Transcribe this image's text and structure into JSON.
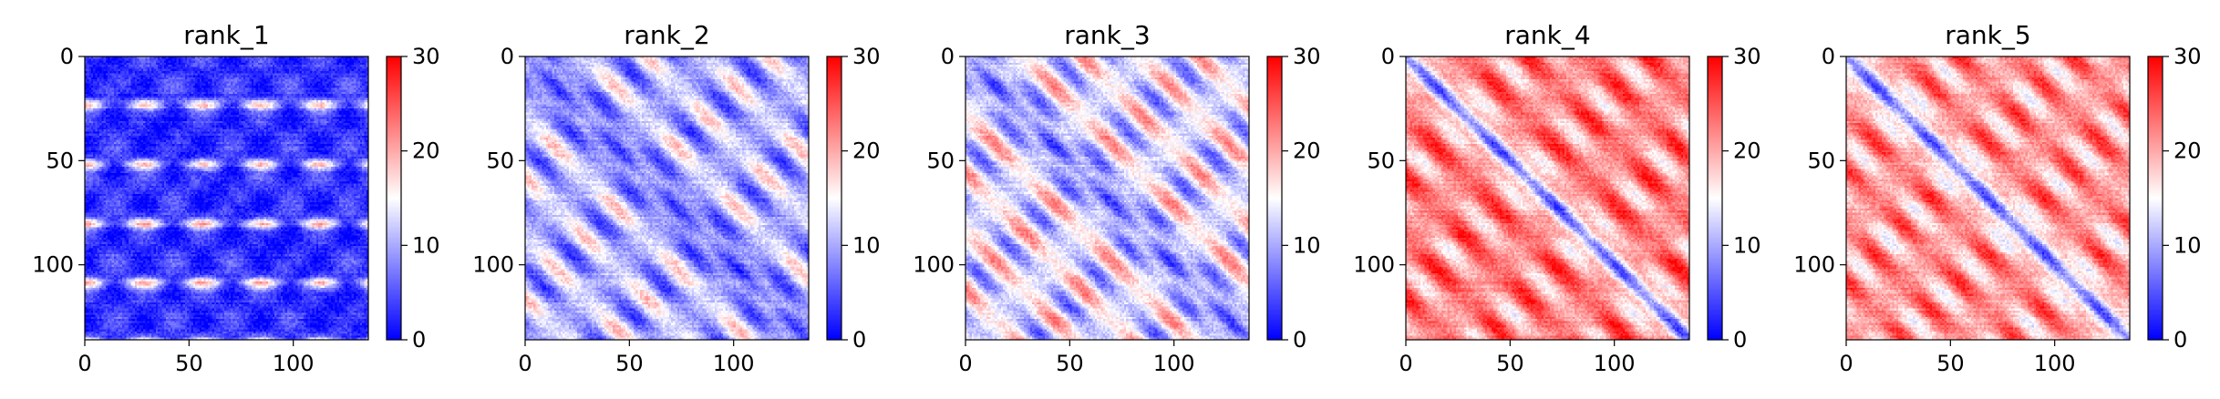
{
  "chart_data": [
    {
      "type": "heatmap",
      "title": "rank_1",
      "rows": 136,
      "cols": 136,
      "x_ticks": [
        0,
        50,
        100
      ],
      "y_ticks": [
        0,
        50,
        100
      ],
      "colorbar": {
        "min": 0,
        "max": 30,
        "ticks": [
          0,
          10,
          20,
          30
        ],
        "colormap": "bwr"
      },
      "pattern": {
        "base": 3,
        "diag_depth": 3,
        "diag_width": 3,
        "wave_amp": 3,
        "band_period": 28.5,
        "band_strength": 16,
        "check_period": 28,
        "off_period": 0,
        "noise": 4,
        "seed": 1
      }
    },
    {
      "type": "heatmap",
      "title": "rank_2",
      "rows": 136,
      "cols": 136,
      "x_ticks": [
        0,
        50,
        100
      ],
      "y_ticks": [
        0,
        50,
        100
      ],
      "colorbar": {
        "min": 0,
        "max": 30,
        "ticks": [
          0,
          10,
          20,
          30
        ],
        "colormap": "bwr"
      },
      "pattern": {
        "base": 11,
        "diag_depth": 10,
        "diag_width": 4,
        "wave_amp": 8,
        "band_period": 0,
        "band_strength": 0,
        "check_period": 0,
        "off_period": 29,
        "noise": 4,
        "seed": 2
      }
    },
    {
      "type": "heatmap",
      "title": "rank_3",
      "rows": 136,
      "cols": 136,
      "x_ticks": [
        0,
        50,
        100
      ],
      "y_ticks": [
        0,
        50,
        100
      ],
      "colorbar": {
        "min": 0,
        "max": 30,
        "ticks": [
          0,
          10,
          20,
          30
        ],
        "colormap": "bwr"
      },
      "pattern": {
        "base": 14,
        "diag_depth": 13,
        "diag_width": 4,
        "wave_amp": 9,
        "band_period": 0,
        "band_strength": 0,
        "check_period": 0,
        "off_period": 28,
        "noise": 4,
        "seed": 3
      }
    },
    {
      "type": "heatmap",
      "title": "rank_4",
      "rows": 136,
      "cols": 136,
      "x_ticks": [
        0,
        50,
        100
      ],
      "y_ticks": [
        0,
        50,
        100
      ],
      "colorbar": {
        "min": 0,
        "max": 30,
        "ticks": [
          0,
          10,
          20,
          30
        ],
        "colormap": "bwr"
      },
      "pattern": {
        "base": 22,
        "diag_depth": 20,
        "diag_width": 4,
        "wave_amp": 7,
        "band_period": 0,
        "band_strength": 0,
        "check_period": 0,
        "off_period": 29,
        "noise": 4,
        "seed": 4
      }
    },
    {
      "type": "heatmap",
      "title": "rank_5",
      "rows": 136,
      "cols": 136,
      "x_ticks": [
        0,
        50,
        100
      ],
      "y_ticks": [
        0,
        50,
        100
      ],
      "colorbar": {
        "min": 0,
        "max": 30,
        "ticks": [
          0,
          10,
          20,
          30
        ],
        "colormap": "bwr"
      },
      "pattern": {
        "base": 21,
        "diag_depth": 19,
        "diag_width": 4,
        "wave_amp": 7,
        "band_period": 0,
        "band_strength": 0,
        "check_period": 0,
        "off_period": 27,
        "noise": 4,
        "seed": 5
      }
    }
  ]
}
